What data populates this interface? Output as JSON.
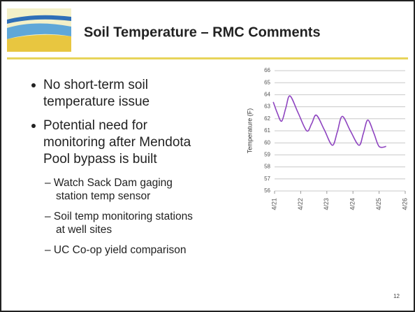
{
  "slide": {
    "title": "Soil Temperature – RMC Comments",
    "bullets": [
      {
        "lines": [
          "No short-term soil",
          "temperature issue"
        ]
      },
      {
        "lines": [
          "Potential need for",
          "monitoring after Mendota",
          "Pool bypass is built"
        ],
        "sub": [
          {
            "lines": [
              "– Watch Sack Dam gaging",
              "station temp sensor"
            ]
          },
          {
            "lines": [
              "– Soil temp monitoring stations",
              "at well sites"
            ]
          },
          {
            "lines": [
              "– UC Co-op yield comparison"
            ]
          }
        ]
      }
    ],
    "page_number": "12"
  },
  "chart_data": {
    "type": "line",
    "y_label": "Temperature (F)",
    "color": "#8e44c0",
    "grid": true,
    "x": [
      20.95,
      21.1,
      21.27,
      21.43,
      21.59,
      21.9,
      22.23,
      22.42,
      22.6,
      22.9,
      23.21,
      23.4,
      23.59,
      23.9,
      24.23,
      24.4,
      24.57,
      24.8,
      25.0,
      25.27
    ],
    "values": [
      63.4,
      62.5,
      61.8,
      62.9,
      63.9,
      62.5,
      61.0,
      61.6,
      62.3,
      61.1,
      59.8,
      60.9,
      62.2,
      61.0,
      59.8,
      60.8,
      61.9,
      60.8,
      59.7,
      59.7
    ],
    "xlim": [
      21,
      26
    ],
    "xticks": [
      {
        "value": 21,
        "label": "4/21"
      },
      {
        "value": 22,
        "label": "4/22"
      },
      {
        "value": 23,
        "label": "4/23"
      },
      {
        "value": 24,
        "label": "4/24"
      },
      {
        "value": 25,
        "label": "4/25"
      },
      {
        "value": 26,
        "label": "4/26"
      }
    ],
    "ylim": [
      56,
      66
    ],
    "yticks": [
      56,
      57,
      58,
      59,
      60,
      61,
      62,
      63,
      64,
      65,
      66
    ]
  }
}
